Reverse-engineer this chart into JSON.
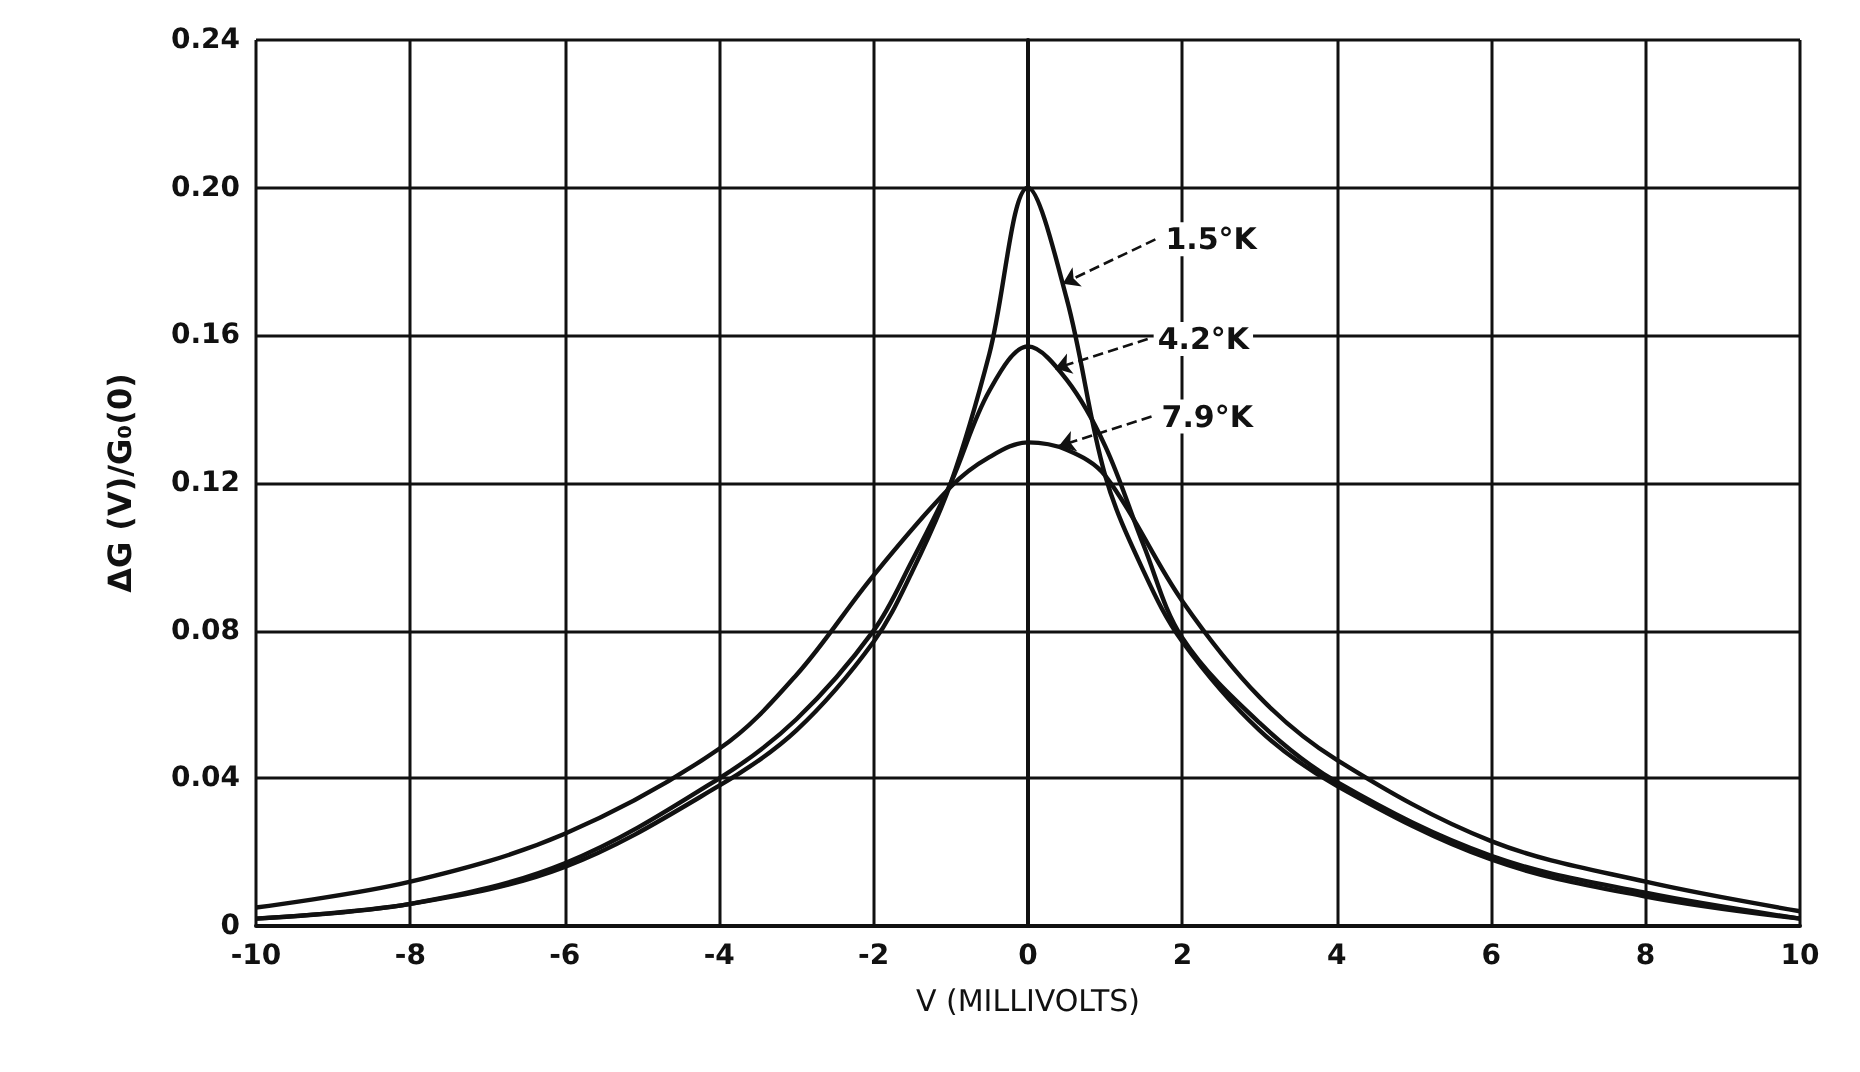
{
  "chart_data": {
    "type": "line",
    "xlabel": "V (MILLIVOLTS)",
    "ylabel": "ΔG (V)/G₀(0)",
    "xlim": [
      -10,
      10
    ],
    "xticks": [
      -10,
      -8,
      -6,
      -4,
      -2,
      0,
      2,
      4,
      6,
      8,
      10
    ],
    "ylim": [
      0,
      0.24
    ],
    "yticks": [
      0,
      0.04,
      0.08,
      0.12,
      0.16,
      {
        "value": 0.2,
        "label": "0.20"
      },
      0.24
    ],
    "grid": true,
    "marker": "none",
    "line_style": "solid",
    "series": [
      {
        "color": "#111111",
        "x": [
          -10,
          -8,
          -6,
          -4,
          -3,
          -2,
          -1.5,
          -1,
          -0.5,
          0,
          0.5,
          1,
          1.5,
          2,
          3,
          4,
          6,
          8,
          10
        ],
        "values": [
          0.002,
          0.006,
          0.016,
          0.038,
          0.053,
          0.077,
          0.096,
          0.12,
          0.155,
          0.2,
          0.17,
          0.122,
          0.096,
          0.077,
          0.053,
          0.038,
          0.018,
          0.008,
          0.002
        ]
      },
      {
        "color": "#111111",
        "x": [
          -10,
          -8,
          -6,
          -4,
          -3,
          -2,
          -1.5,
          -1,
          -0.5,
          0,
          0.5,
          1,
          1.5,
          2,
          3,
          4,
          6,
          8,
          10
        ],
        "values": [
          0.002,
          0.006,
          0.017,
          0.04,
          0.056,
          0.08,
          0.099,
          0.12,
          0.145,
          0.157,
          0.148,
          0.13,
          0.103,
          0.078,
          0.055,
          0.039,
          0.019,
          0.009,
          0.002
        ]
      },
      {
        "color": "#111111",
        "x": [
          -10,
          -8,
          -6,
          -4,
          -3,
          -2,
          -1,
          -0.5,
          0,
          0.5,
          1,
          2,
          3,
          4,
          6,
          8,
          10
        ],
        "values": [
          0.005,
          0.012,
          0.025,
          0.048,
          0.068,
          0.095,
          0.119,
          0.127,
          0.131,
          0.129,
          0.122,
          0.088,
          0.062,
          0.045,
          0.023,
          0.012,
          0.004
        ]
      }
    ],
    "annotations": [
      {
        "text": "1.5°K",
        "x": 0.45,
        "y": 0.174
      },
      {
        "text": "4.2°K",
        "x": 0.35,
        "y": 0.151
      },
      {
        "text": "7.9°K",
        "x": 0.4,
        "y": 0.13
      }
    ]
  }
}
